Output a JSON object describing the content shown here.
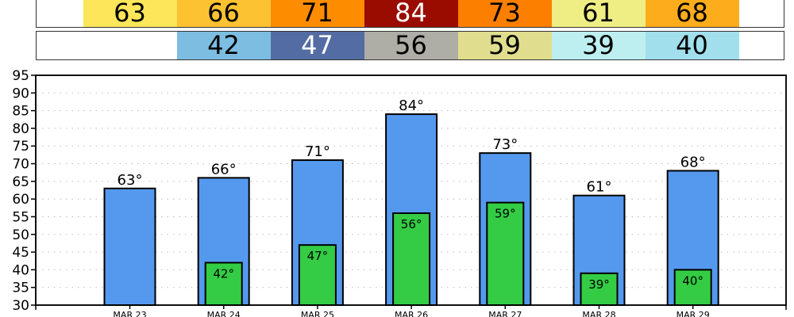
{
  "highs_row": [
    {
      "value": "63",
      "color": "#fde65a",
      "text_color": "#000"
    },
    {
      "value": "66",
      "color": "#fcc232",
      "text_color": "#000"
    },
    {
      "value": "71",
      "color": "#fd8c00",
      "text_color": "#000"
    },
    {
      "value": "84",
      "color": "#9a0c00",
      "text_color": "#fff"
    },
    {
      "value": "73",
      "color": "#fd7f00",
      "text_color": "#000"
    },
    {
      "value": "61",
      "color": "#eeee84",
      "text_color": "#000"
    },
    {
      "value": "68",
      "color": "#fdac1c",
      "text_color": "#000"
    }
  ],
  "lows_row": [
    {
      "value": "42",
      "color": "#7cbde1",
      "text_color": "#000"
    },
    {
      "value": "47",
      "color": "#536ca3",
      "text_color": "#fff"
    },
    {
      "value": "56",
      "color": "#aeaea6",
      "text_color": "#000"
    },
    {
      "value": "59",
      "color": "#e0de8e",
      "text_color": "#000"
    },
    {
      "value": "39",
      "color": "#bdeff0",
      "text_color": "#000"
    },
    {
      "value": "40",
      "color": "#a1dfec",
      "text_color": "#000"
    }
  ],
  "chart_data": {
    "type": "bar",
    "categories": [
      "MAR 23",
      "MAR 24",
      "MAR 25",
      "MAR 26",
      "MAR 27",
      "MAR 28",
      "MAR 29"
    ],
    "series": [
      {
        "values": [
          63,
          66,
          71,
          84,
          73,
          61,
          68
        ],
        "labels": [
          "63°",
          "66°",
          "71°",
          "84°",
          "73°",
          "61°",
          "68°"
        ],
        "color": "#5599ee"
      },
      {
        "values": [
          null,
          42,
          47,
          56,
          59,
          39,
          40
        ],
        "labels": [
          "",
          "42°",
          "47°",
          "56°",
          "59°",
          "39°",
          "40°"
        ],
        "color": "#33cc44"
      }
    ],
    "ylim": [
      30,
      95
    ],
    "yticks": [
      30,
      35,
      40,
      45,
      50,
      55,
      60,
      65,
      70,
      75,
      80,
      85,
      90,
      95
    ],
    "grid": true
  }
}
